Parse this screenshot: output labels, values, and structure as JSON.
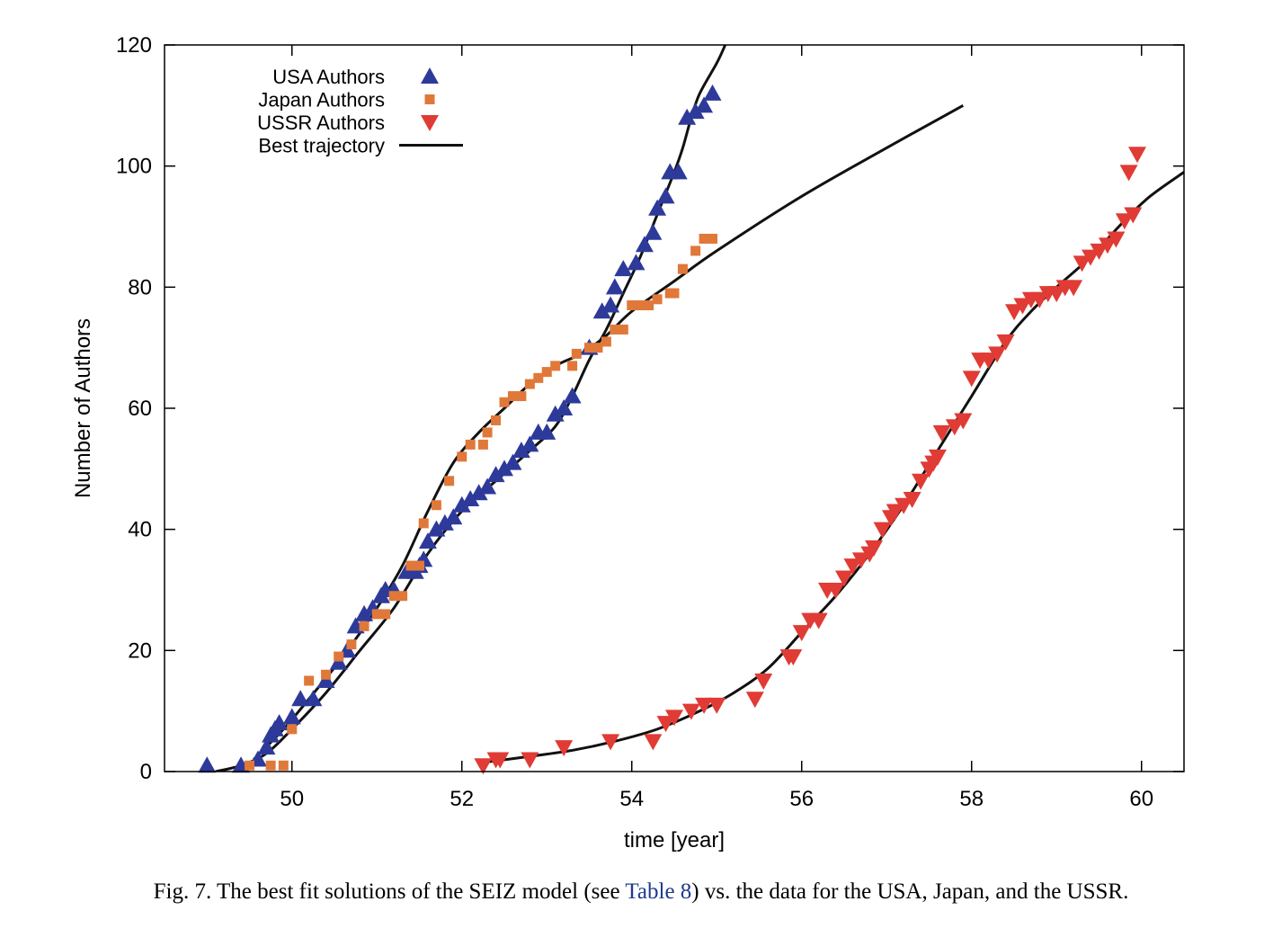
{
  "caption": {
    "before": "Fig. 7.  The best fit solutions of the SEIZ model (see ",
    "ref": "Table 8",
    "after": ") vs. the data for the USA, Japan, and the USSR."
  },
  "chart_data": {
    "type": "scatter",
    "xlabel": "time [year]",
    "ylabel": "Number of Authors",
    "xlim": [
      48.5,
      60.5
    ],
    "ylim": [
      0,
      120
    ],
    "xticks": [
      50,
      52,
      54,
      56,
      58,
      60
    ],
    "yticks": [
      0,
      20,
      40,
      60,
      80,
      100,
      120
    ],
    "legend_position": "top-left",
    "legend": [
      {
        "label": "USA Authors",
        "marker": "triangle-up",
        "color": "#2e3a9a"
      },
      {
        "label": "Japan Authors",
        "marker": "square",
        "color": "#e0783a"
      },
      {
        "label": "USSR Authors",
        "marker": "triangle-down",
        "color": "#e03b35"
      },
      {
        "label": "Best trajectory",
        "marker": "line",
        "color": "#111111"
      }
    ],
    "series": [
      {
        "name": "USA Authors",
        "marker": "triangle-up",
        "color": "#2e3a9a",
        "points": [
          [
            49.0,
            1
          ],
          [
            49.4,
            1
          ],
          [
            49.6,
            2
          ],
          [
            49.7,
            4
          ],
          [
            49.75,
            6
          ],
          [
            49.8,
            7
          ],
          [
            49.85,
            8
          ],
          [
            50.0,
            9
          ],
          [
            50.1,
            12
          ],
          [
            50.25,
            12
          ],
          [
            50.4,
            15
          ],
          [
            50.55,
            18
          ],
          [
            50.65,
            20
          ],
          [
            50.75,
            24
          ],
          [
            50.85,
            26
          ],
          [
            50.95,
            27
          ],
          [
            51.05,
            29
          ],
          [
            51.1,
            30
          ],
          [
            51.2,
            30
          ],
          [
            51.35,
            33
          ],
          [
            51.45,
            33
          ],
          [
            51.5,
            34
          ],
          [
            51.55,
            35
          ],
          [
            51.6,
            38
          ],
          [
            51.7,
            40
          ],
          [
            51.8,
            41
          ],
          [
            51.9,
            42
          ],
          [
            52.0,
            44
          ],
          [
            52.1,
            45
          ],
          [
            52.2,
            46
          ],
          [
            52.3,
            47
          ],
          [
            52.4,
            49
          ],
          [
            52.5,
            50
          ],
          [
            52.6,
            51
          ],
          [
            52.7,
            53
          ],
          [
            52.8,
            54
          ],
          [
            52.9,
            56
          ],
          [
            53.0,
            56
          ],
          [
            53.1,
            59
          ],
          [
            53.2,
            60
          ],
          [
            53.3,
            62
          ],
          [
            53.5,
            70
          ],
          [
            53.65,
            76
          ],
          [
            53.75,
            77
          ],
          [
            53.8,
            80
          ],
          [
            53.9,
            83
          ],
          [
            54.05,
            84
          ],
          [
            54.15,
            87
          ],
          [
            54.25,
            89
          ],
          [
            54.3,
            93
          ],
          [
            54.4,
            95
          ],
          [
            54.45,
            99
          ],
          [
            54.55,
            99
          ],
          [
            54.65,
            108
          ],
          [
            54.75,
            109
          ],
          [
            54.85,
            110
          ],
          [
            54.95,
            112
          ]
        ]
      },
      {
        "name": "Japan Authors",
        "marker": "square",
        "color": "#e0783a",
        "points": [
          [
            49.5,
            1
          ],
          [
            49.75,
            1
          ],
          [
            49.9,
            1
          ],
          [
            50.0,
            7
          ],
          [
            50.2,
            15
          ],
          [
            50.4,
            16
          ],
          [
            50.55,
            19
          ],
          [
            50.7,
            21
          ],
          [
            50.85,
            24
          ],
          [
            51.0,
            26
          ],
          [
            51.1,
            26
          ],
          [
            51.2,
            29
          ],
          [
            51.3,
            29
          ],
          [
            51.4,
            34
          ],
          [
            51.5,
            34
          ],
          [
            51.55,
            41
          ],
          [
            51.7,
            44
          ],
          [
            51.85,
            48
          ],
          [
            52.0,
            52
          ],
          [
            52.1,
            54
          ],
          [
            52.25,
            54
          ],
          [
            52.3,
            56
          ],
          [
            52.4,
            58
          ],
          [
            52.5,
            61
          ],
          [
            52.6,
            62
          ],
          [
            52.7,
            62
          ],
          [
            52.8,
            64
          ],
          [
            52.9,
            65
          ],
          [
            53.0,
            66
          ],
          [
            53.1,
            67
          ],
          [
            53.3,
            67
          ],
          [
            53.35,
            69
          ],
          [
            53.5,
            70
          ],
          [
            53.6,
            70
          ],
          [
            53.7,
            71
          ],
          [
            53.8,
            73
          ],
          [
            53.9,
            73
          ],
          [
            54.0,
            77
          ],
          [
            54.1,
            77
          ],
          [
            54.2,
            77
          ],
          [
            54.3,
            78
          ],
          [
            54.45,
            79
          ],
          [
            54.5,
            79
          ],
          [
            54.6,
            83
          ],
          [
            54.75,
            86
          ],
          [
            54.85,
            88
          ],
          [
            54.95,
            88
          ]
        ]
      },
      {
        "name": "USSR Authors",
        "marker": "triangle-down",
        "color": "#e03b35",
        "points": [
          [
            52.25,
            1
          ],
          [
            52.4,
            2
          ],
          [
            52.45,
            2
          ],
          [
            52.8,
            2
          ],
          [
            53.2,
            4
          ],
          [
            53.75,
            5
          ],
          [
            54.25,
            5
          ],
          [
            54.4,
            8
          ],
          [
            54.5,
            9
          ],
          [
            54.7,
            10
          ],
          [
            54.85,
            11
          ],
          [
            55.0,
            11
          ],
          [
            55.45,
            12
          ],
          [
            55.55,
            15
          ],
          [
            55.85,
            19
          ],
          [
            55.9,
            19
          ],
          [
            56.0,
            23
          ],
          [
            56.1,
            25
          ],
          [
            56.2,
            25
          ],
          [
            56.3,
            30
          ],
          [
            56.4,
            30
          ],
          [
            56.5,
            32
          ],
          [
            56.6,
            34
          ],
          [
            56.7,
            35
          ],
          [
            56.8,
            36
          ],
          [
            56.85,
            37
          ],
          [
            56.95,
            40
          ],
          [
            57.05,
            42
          ],
          [
            57.1,
            43
          ],
          [
            57.2,
            44
          ],
          [
            57.3,
            45
          ],
          [
            57.4,
            48
          ],
          [
            57.5,
            50
          ],
          [
            57.55,
            51
          ],
          [
            57.6,
            52
          ],
          [
            57.65,
            56
          ],
          [
            57.8,
            57
          ],
          [
            57.9,
            58
          ],
          [
            58.0,
            65
          ],
          [
            58.1,
            68
          ],
          [
            58.2,
            68
          ],
          [
            58.3,
            69
          ],
          [
            58.4,
            71
          ],
          [
            58.5,
            76
          ],
          [
            58.6,
            77
          ],
          [
            58.7,
            78
          ],
          [
            58.8,
            78
          ],
          [
            58.9,
            79
          ],
          [
            59.0,
            79
          ],
          [
            59.1,
            80
          ],
          [
            59.2,
            80
          ],
          [
            59.3,
            84
          ],
          [
            59.4,
            85
          ],
          [
            59.5,
            86
          ],
          [
            59.6,
            87
          ],
          [
            59.7,
            88
          ],
          [
            59.8,
            91
          ],
          [
            59.9,
            92
          ],
          [
            59.85,
            99
          ],
          [
            59.95,
            102
          ]
        ]
      },
      {
        "name": "Best trajectory",
        "marker": "line",
        "color": "#111111",
        "curves": [
          [
            [
              49.1,
              0
            ],
            [
              49.4,
              1
            ],
            [
              49.7,
              3
            ],
            [
              50.0,
              7
            ],
            [
              50.4,
              13
            ],
            [
              50.8,
              20
            ],
            [
              51.2,
              27
            ],
            [
              51.6,
              36
            ],
            [
              52.0,
              43
            ],
            [
              52.4,
              48
            ],
            [
              52.8,
              53
            ],
            [
              53.1,
              57
            ],
            [
              53.3,
              62
            ],
            [
              53.5,
              68
            ],
            [
              53.7,
              73
            ],
            [
              53.9,
              79
            ],
            [
              54.1,
              85
            ],
            [
              54.3,
              92
            ],
            [
              54.5,
              99
            ],
            [
              54.6,
              103
            ],
            [
              54.7,
              108
            ],
            [
              54.8,
              112
            ],
            [
              55.0,
              117
            ],
            [
              55.1,
              120
            ]
          ],
          [
            [
              49.55,
              2
            ],
            [
              49.9,
              7
            ],
            [
              50.2,
              12
            ],
            [
              50.6,
              19
            ],
            [
              51.0,
              27
            ],
            [
              51.3,
              34
            ],
            [
              51.6,
              43
            ],
            [
              51.9,
              51
            ],
            [
              52.2,
              56
            ],
            [
              52.5,
              60
            ],
            [
              52.8,
              64
            ],
            [
              53.1,
              67
            ],
            [
              53.4,
              69
            ],
            [
              53.7,
              72
            ],
            [
              54.0,
              76
            ],
            [
              54.5,
              81
            ],
            [
              55.0,
              86
            ],
            [
              56.0,
              95
            ],
            [
              57.0,
              103
            ],
            [
              57.9,
              110
            ]
          ],
          [
            [
              52.25,
              1.5
            ],
            [
              52.8,
              2.5
            ],
            [
              53.3,
              3.5
            ],
            [
              53.8,
              5
            ],
            [
              54.3,
              7
            ],
            [
              54.8,
              10
            ],
            [
              55.2,
              13
            ],
            [
              55.6,
              17
            ],
            [
              56.0,
              23
            ],
            [
              56.4,
              29
            ],
            [
              56.8,
              36
            ],
            [
              57.2,
              44
            ],
            [
              57.6,
              53
            ],
            [
              58.0,
              62
            ],
            [
              58.4,
              71
            ],
            [
              58.7,
              76
            ],
            [
              59.0,
              80
            ],
            [
              59.4,
              85
            ],
            [
              59.8,
              91
            ],
            [
              60.1,
              95
            ],
            [
              60.5,
              99
            ]
          ]
        ]
      }
    ]
  }
}
